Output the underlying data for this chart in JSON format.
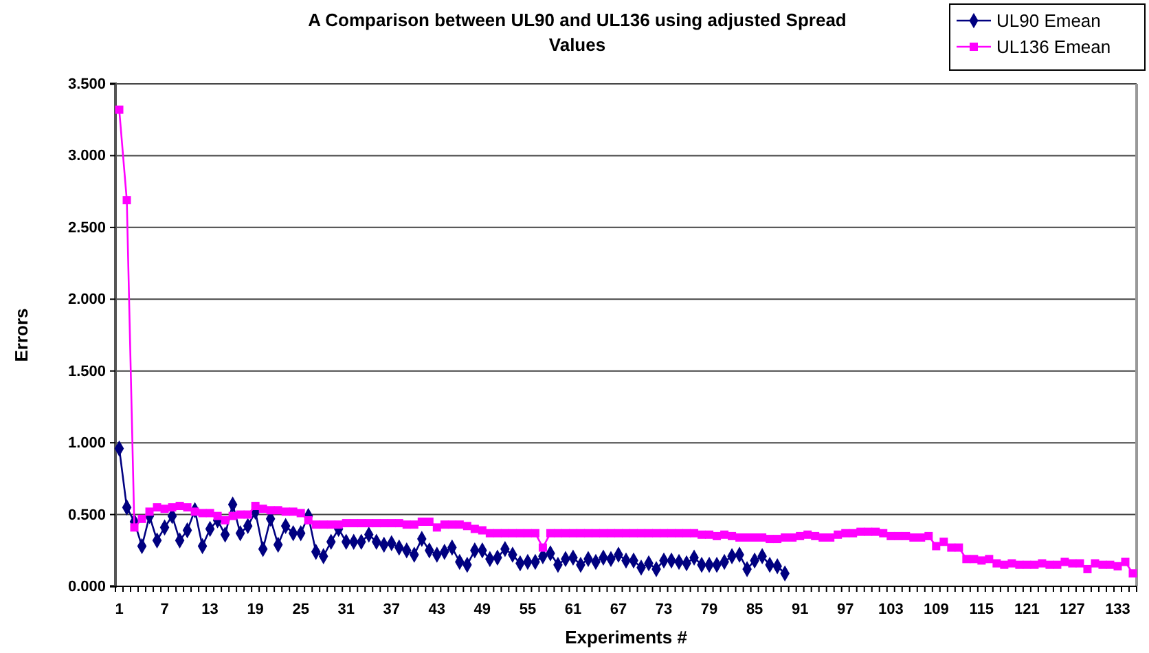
{
  "chart_data": {
    "type": "line",
    "title": "A Comparison between UL90 and UL136 using adjusted Spread Values",
    "xlabel": "Experiments #",
    "ylabel": "Errors",
    "categories": [
      "1",
      null,
      null,
      null,
      null,
      null,
      "7",
      null,
      null,
      null,
      null,
      null,
      "13",
      null,
      null,
      null,
      null,
      null,
      "19",
      null,
      null,
      null,
      null,
      null,
      "25",
      null,
      null,
      null,
      null,
      null,
      "31",
      null,
      null,
      null,
      null,
      null,
      "37",
      null,
      null,
      null,
      null,
      null,
      "43",
      null,
      null,
      null,
      null,
      null,
      "49",
      null,
      null,
      null,
      null,
      null,
      "55",
      null,
      null,
      null,
      null,
      null,
      "61",
      null,
      null,
      null,
      null,
      null,
      "67",
      null,
      null,
      null,
      null,
      null,
      "73",
      null,
      null,
      null,
      null,
      null,
      "79",
      null,
      null,
      null,
      null,
      null,
      "85",
      null,
      null,
      null,
      null,
      null,
      "91",
      null,
      null,
      null,
      null,
      null,
      "97",
      null,
      null,
      null,
      null,
      null,
      "103",
      null,
      null,
      null,
      null,
      null,
      "109",
      null,
      null,
      null,
      null,
      null,
      "115",
      null,
      null,
      null,
      null,
      null,
      "121",
      null,
      null,
      null,
      null,
      null,
      "127",
      null,
      null,
      null,
      null,
      null,
      "133",
      null,
      null
    ],
    "ylim": [
      0,
      3.5
    ],
    "yticks": [
      {
        "value": 0,
        "label": "0.000"
      },
      {
        "value": 0.5,
        "label": "0.500"
      },
      {
        "value": 1,
        "label": "1.000"
      },
      {
        "value": 1.5,
        "label": "1.500"
      },
      {
        "value": 2,
        "label": "2.000"
      },
      {
        "value": 2.5,
        "label": "2.500"
      },
      {
        "value": 3,
        "label": "3.000"
      },
      {
        "value": 3.5,
        "label": "3.500"
      }
    ],
    "grid": "y",
    "legend": "top right",
    "line_style": "solid",
    "series": [
      {
        "name": "UL90 Emean",
        "color": "#000080",
        "marker": "diamond",
        "values": [
          0.96,
          0.55,
          0.45,
          0.28,
          0.49,
          0.32,
          0.41,
          0.49,
          0.32,
          0.39,
          0.53,
          0.28,
          0.4,
          0.46,
          0.36,
          0.57,
          0.37,
          0.42,
          0.52,
          0.26,
          0.47,
          0.29,
          0.42,
          0.37,
          0.37,
          0.49,
          0.24,
          0.21,
          0.31,
          0.4,
          0.31,
          0.31,
          0.31,
          0.36,
          0.31,
          0.29,
          0.3,
          0.27,
          0.25,
          0.22,
          0.33,
          0.25,
          0.22,
          0.24,
          0.27,
          0.17,
          0.15,
          0.25,
          0.25,
          0.19,
          0.2,
          0.26,
          0.22,
          0.16,
          0.17,
          0.17,
          0.21,
          0.23,
          0.15,
          0.19,
          0.2,
          0.15,
          0.19,
          0.17,
          0.2,
          0.19,
          0.22,
          0.18,
          0.18,
          0.13,
          0.16,
          0.12,
          0.18,
          0.18,
          0.17,
          0.16,
          0.2,
          0.15,
          0.15,
          0.15,
          0.17,
          0.21,
          0.22,
          0.12,
          0.18,
          0.21,
          0.15,
          0.14,
          0.09,
          null,
          null,
          null,
          null,
          null,
          null,
          null,
          null,
          null,
          null,
          null,
          null,
          null,
          null,
          null,
          null,
          null,
          null,
          null,
          null,
          null,
          null,
          null,
          null,
          null,
          null,
          null,
          null,
          null,
          null,
          null,
          null,
          null,
          null,
          null,
          null,
          null,
          null,
          null,
          null,
          null,
          null,
          null,
          null,
          null,
          null
        ]
      },
      {
        "name": "UL136 Emean",
        "color": "#ff00ff",
        "marker": "square",
        "values": [
          3.32,
          2.69,
          0.41,
          0.47,
          0.52,
          0.55,
          0.54,
          0.55,
          0.56,
          0.55,
          0.52,
          0.51,
          0.51,
          0.49,
          0.46,
          0.49,
          0.5,
          0.5,
          0.56,
          0.54,
          0.53,
          0.53,
          0.52,
          0.52,
          0.51,
          0.46,
          0.43,
          0.43,
          0.43,
          0.43,
          0.44,
          0.44,
          0.44,
          0.44,
          0.44,
          0.44,
          0.44,
          0.44,
          0.43,
          0.43,
          0.45,
          0.45,
          0.41,
          0.43,
          0.43,
          0.43,
          0.42,
          0.4,
          0.39,
          0.37,
          0.37,
          0.37,
          0.37,
          0.37,
          0.37,
          0.37,
          0.27,
          0.37,
          0.37,
          0.37,
          0.37,
          0.37,
          0.37,
          0.37,
          0.37,
          0.37,
          0.37,
          0.37,
          0.37,
          0.37,
          0.37,
          0.37,
          0.37,
          0.37,
          0.37,
          0.37,
          0.37,
          0.36,
          0.36,
          0.35,
          0.36,
          0.35,
          0.34,
          0.34,
          0.34,
          0.34,
          0.33,
          0.33,
          0.34,
          0.34,
          0.35,
          0.36,
          0.35,
          0.34,
          0.34,
          0.36,
          0.37,
          0.37,
          0.38,
          0.38,
          0.38,
          0.37,
          0.35,
          0.35,
          0.35,
          0.34,
          0.34,
          0.35,
          0.28,
          0.31,
          0.27,
          0.27,
          0.19,
          0.19,
          0.18,
          0.19,
          0.16,
          0.15,
          0.16,
          0.15,
          0.15,
          0.15,
          0.16,
          0.15,
          0.15,
          0.17,
          0.16,
          0.16,
          0.12,
          0.16,
          0.15,
          0.15,
          0.14,
          0.17,
          0.09
        ]
      }
    ]
  }
}
